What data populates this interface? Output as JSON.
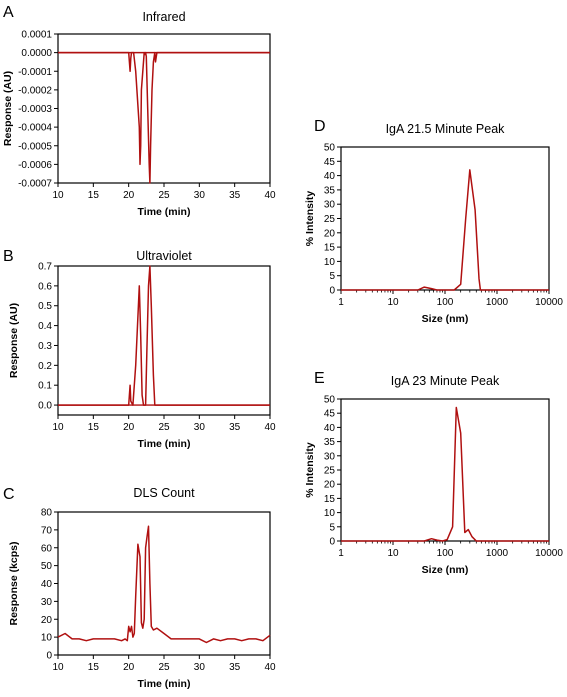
{
  "chart_data": [
    {
      "panel": "A",
      "type": "line",
      "title": "Infrared",
      "xlabel": "Time (min)",
      "ylabel": "Response (AU)",
      "xlim": [
        10,
        40
      ],
      "ylim": [
        -0.0007,
        0.0001
      ],
      "xticks": [
        10,
        15,
        20,
        25,
        30,
        35,
        40
      ],
      "yticks": [
        0.0001,
        0.0,
        -0.0001,
        -0.0002,
        -0.0003,
        -0.0004,
        -0.0005,
        -0.0006,
        -0.0007
      ],
      "yticklabels": [
        "0.0001",
        "0.0000",
        "-0.0001",
        "-0.0002",
        "-0.0003",
        "-0.0004",
        "-0.0005",
        "-0.0006",
        "-0.0007"
      ],
      "xscale": "linear",
      "color": "#b01010",
      "series": [
        {
          "x": [
            10,
            20.0,
            20.1,
            20.2,
            20.3,
            20.4,
            20.5,
            20.6,
            20.7,
            21.0,
            21.5,
            21.6,
            21.7,
            21.8,
            22.0,
            22.2,
            22.3,
            22.4,
            22.5,
            22.7,
            22.9,
            23.0,
            23.1,
            23.3,
            23.5,
            23.7,
            23.8,
            24.0,
            40
          ],
          "y": [
            0,
            0,
            -5e-05,
            -0.0001,
            -3e-05,
            0,
            0,
            0,
            0,
            -0.0001,
            -0.0004,
            -0.0006,
            -0.0005,
            -0.0002,
            -0.0001,
            0,
            -1e-05,
            0,
            -2e-05,
            -0.0003,
            -0.0006,
            -0.0007,
            -0.0005,
            -0.0002,
            -5e-05,
            0,
            -5e-05,
            0,
            0
          ]
        }
      ]
    },
    {
      "panel": "B",
      "type": "line",
      "title": "Ultraviolet",
      "xlabel": "Time (min)",
      "ylabel": "Response (AU)",
      "xlim": [
        10,
        40
      ],
      "ylim": [
        -0.05,
        0.7
      ],
      "xticks": [
        10,
        15,
        20,
        25,
        30,
        35,
        40
      ],
      "yticks": [
        0.0,
        0.1,
        0.2,
        0.3,
        0.4,
        0.5,
        0.6,
        0.7
      ],
      "yticklabels": [
        "0.0",
        "0.1",
        "0.2",
        "0.3",
        "0.4",
        "0.5",
        "0.6",
        "0.7"
      ],
      "xscale": "linear",
      "color": "#b01010",
      "series": [
        {
          "x": [
            10,
            20.0,
            20.1,
            20.2,
            20.3,
            20.6,
            21.0,
            21.5,
            21.7,
            21.9,
            22.1,
            22.4,
            22.6,
            22.8,
            23.0,
            23.2,
            23.5,
            23.7,
            24.0,
            40
          ],
          "y": [
            0,
            0,
            0.05,
            0.1,
            0.02,
            0,
            0.2,
            0.6,
            0.35,
            0.05,
            0,
            0.0,
            0.3,
            0.6,
            0.7,
            0.5,
            0.15,
            0,
            0,
            0
          ]
        }
      ]
    },
    {
      "panel": "C",
      "type": "line",
      "title": "DLS Count",
      "xlabel": "Time (min)",
      "ylabel": "Response (kcps)",
      "xlim": [
        10,
        40
      ],
      "ylim": [
        0,
        80
      ],
      "xticks": [
        10,
        15,
        20,
        25,
        30,
        35,
        40
      ],
      "yticks": [
        0,
        10,
        20,
        30,
        40,
        50,
        60,
        70,
        80
      ],
      "yticklabels": [
        "0",
        "10",
        "20",
        "30",
        "40",
        "50",
        "60",
        "70",
        "80"
      ],
      "xscale": "linear",
      "color": "#b01010",
      "series": [
        {
          "x": [
            10,
            11,
            12,
            13,
            14,
            15,
            16,
            17,
            18,
            19,
            19.5,
            19.8,
            20.0,
            20.2,
            20.4,
            20.6,
            20.8,
            21.0,
            21.3,
            21.6,
            21.8,
            22.0,
            22.2,
            22.4,
            22.6,
            22.8,
            23.0,
            23.2,
            23.5,
            24.0,
            25,
            26,
            27,
            28,
            29,
            30,
            31,
            32,
            33,
            34,
            35,
            36,
            37,
            38,
            39,
            40
          ],
          "y": [
            10,
            12,
            9,
            9,
            8,
            9,
            9,
            9,
            9,
            8,
            9,
            8,
            16,
            13,
            16,
            10,
            12,
            33,
            62,
            55,
            18,
            15,
            20,
            60,
            66,
            72,
            40,
            16,
            14,
            15,
            12,
            9,
            9,
            9,
            9,
            9,
            7,
            9,
            8,
            9,
            9,
            8,
            9,
            9,
            8,
            11
          ]
        }
      ]
    },
    {
      "panel": "D",
      "type": "line",
      "title": "IgA 21.5 Minute Peak",
      "xlabel": "Size (nm)",
      "ylabel": "% Intensity",
      "xlim": [
        1,
        10000
      ],
      "ylim": [
        0,
        50
      ],
      "xticks": [
        1,
        10,
        100,
        1000,
        10000
      ],
      "yticks": [
        0,
        5,
        10,
        15,
        20,
        25,
        30,
        35,
        40,
        45,
        50
      ],
      "yticklabels": [
        "0",
        "5",
        "10",
        "15",
        "20",
        "25",
        "30",
        "35",
        "40",
        "45",
        "50"
      ],
      "xscale": "log",
      "color": "#b01010",
      "series": [
        {
          "x": [
            1,
            30,
            40,
            55,
            70,
            150,
            200,
            250,
            300,
            380,
            450,
            480,
            10000
          ],
          "y": [
            0,
            0,
            1,
            0.5,
            0,
            0,
            2,
            25,
            42,
            28,
            4,
            0,
            0
          ]
        }
      ]
    },
    {
      "panel": "E",
      "type": "line",
      "title": "IgA 23 Minute Peak",
      "xlabel": "Size (nm)",
      "ylabel": "% Intensity",
      "xlim": [
        1,
        10000
      ],
      "ylim": [
        0,
        50
      ],
      "xticks": [
        1,
        10,
        100,
        1000,
        10000
      ],
      "yticks": [
        0,
        5,
        10,
        15,
        20,
        25,
        30,
        35,
        40,
        45,
        50
      ],
      "yticklabels": [
        "0",
        "5",
        "10",
        "15",
        "20",
        "25",
        "30",
        "35",
        "40",
        "45",
        "50"
      ],
      "xscale": "log",
      "color": "#b01010",
      "series": [
        {
          "x": [
            1,
            40,
            55,
            70,
            90,
            110,
            140,
            165,
            200,
            240,
            280,
            330,
            400,
            10000
          ],
          "y": [
            0,
            0,
            0.8,
            0.3,
            0,
            0.5,
            5,
            47,
            38,
            3,
            4,
            1.5,
            0,
            0
          ]
        }
      ]
    }
  ]
}
